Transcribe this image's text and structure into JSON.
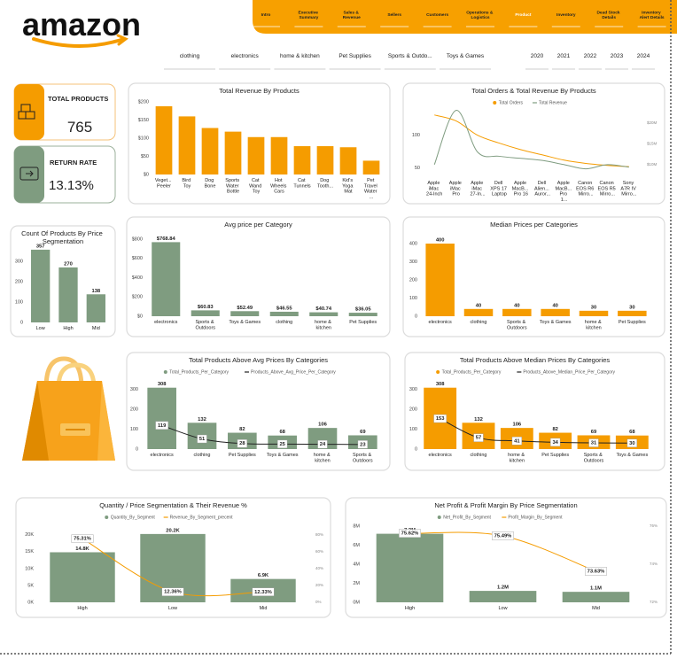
{
  "header": {
    "logo": "amazon",
    "nav": [
      "Intro",
      "Executive Summary",
      "Sales & Revenue",
      "Sellers",
      "Customers",
      "Operations & Logistics",
      "Product",
      "Inventory",
      "Dead Stock Details",
      "Inventory Alert Details"
    ],
    "active": 6
  },
  "slicers": {
    "categories": [
      "clothing",
      "electronics",
      "home & kitchen",
      "Pet Supplies",
      "Sports & Outdo...",
      "Toys & Games"
    ],
    "years": [
      "2020",
      "2021",
      "2022",
      "2023",
      "2024"
    ]
  },
  "kpis": [
    {
      "label": "TOTAL PRODUCTS",
      "value": "765"
    },
    {
      "label": "RETURN RATE",
      "value": "13.13%"
    }
  ],
  "chart_data": [
    {
      "type": "bar",
      "title": "Total Revenue By Products",
      "categories": [
        "Veget... Peeler",
        "Bird Toy",
        "Dog Bone",
        "Sports Water Bottle",
        "Cat Wand Toy",
        "Hot Wheels Cars",
        "Cat Tunnels",
        "Dog Tooth...",
        "Kid's Yoga Mat",
        "Pet Travel Water ..."
      ],
      "values": [
        188,
        160,
        128,
        118,
        103,
        103,
        78,
        78,
        75,
        38
      ],
      "color": "#f59c00",
      "ylim": [
        0,
        200
      ],
      "yticks": [
        {
          "value": 0,
          "label": "$0"
        },
        {
          "value": 50,
          "label": "$50"
        },
        {
          "value": 100,
          "label": "$100"
        },
        {
          "value": 150,
          "label": "$150"
        },
        {
          "value": 200,
          "label": "$200"
        }
      ]
    },
    {
      "type": "line",
      "title": "Total Orders & Total Revenue By Products",
      "categories": [
        "Apple iMac 24-Inch",
        "Apple iMac Pro",
        "Apple iMac 27-In...",
        "Dell XPS 17 Laptop",
        "Apple MacB... Pro 16",
        "Dell Alien... Auror...",
        "Apple MacB... Pro 1...",
        "Canon EOS R6 Mirro...",
        "Canon EOS R5 Mirro...",
        "Sony A7R IV Mirro..."
      ],
      "series": [
        {
          "name": "Total Orders",
          "color": "#f59c00",
          "values": [
            131,
            122,
            100,
            88,
            78,
            70,
            62,
            57,
            54,
            52
          ]
        },
        {
          "name": "Total Revenue",
          "color": "#7f9c80",
          "axis": "y2",
          "values": [
            10000000,
            23000000,
            13000000,
            12000000,
            11500000,
            11000000,
            10000000,
            9000000,
            10000000,
            9400000
          ]
        }
      ],
      "ylim": [
        36,
        147
      ],
      "yticks": [
        50,
        100
      ],
      "y2lim": [
        7000000,
        24400000
      ],
      "y2ticks": [
        {
          "value": 10000000,
          "label": "$10M"
        },
        {
          "value": 15000000,
          "label": "$15M"
        },
        {
          "value": 20000000,
          "label": "$20M"
        }
      ],
      "legend": "top"
    },
    {
      "type": "bar",
      "title": "Count Of Products By Price Segmentation",
      "categories": [
        "Low",
        "High",
        "Mid"
      ],
      "values": [
        357,
        270,
        138
      ],
      "color": "#7f9c80",
      "ylim": [
        0,
        400
      ],
      "yticks": [
        0,
        100,
        200,
        300
      ],
      "data_labels": true
    },
    {
      "type": "bar",
      "title": "Avg price per Category",
      "categories": [
        "electronics",
        "Sports & Outdoors",
        "Toys & Games",
        "clothing",
        "home & kitchen",
        "Pet Supplies"
      ],
      "values": [
        768.84,
        60.83,
        52.49,
        46.55,
        40.74,
        36.05
      ],
      "value_labels": [
        "$768.84",
        "$60.83",
        "$52.49",
        "$46.55",
        "$40.74",
        "$36.05"
      ],
      "color": "#7f9c80",
      "ylim": [
        0,
        800
      ],
      "yticks": [
        {
          "value": 0,
          "label": "$0"
        },
        {
          "value": 200,
          "label": "$200"
        },
        {
          "value": 400,
          "label": "$400"
        },
        {
          "value": 600,
          "label": "$600"
        },
        {
          "value": 800,
          "label": "$800"
        }
      ],
      "data_labels": true
    },
    {
      "type": "bar",
      "title": "Median Prices per Categories",
      "categories": [
        "electronics",
        "clothing",
        "Sports & Outdoors",
        "Toys & Games",
        "home & kitchen",
        "Pet Supplies"
      ],
      "values": [
        400,
        40,
        40,
        40,
        30,
        30
      ],
      "color": "#f59c00",
      "ylim": [
        0,
        400
      ],
      "yticks": [
        0,
        100,
        200,
        300,
        400
      ],
      "data_labels": true
    },
    {
      "type": "combo",
      "title": "Total Products Above Avg Prices By Categories",
      "categories": [
        "electronics",
        "clothing",
        "Pet Supplies",
        "Toys & Games",
        "home & kitchen",
        "Sports & Outdoors"
      ],
      "series": [
        {
          "name": "Total_Products_Per_Category",
          "type": "bar",
          "color": "#7f9c80",
          "values": [
            308,
            132,
            82,
            68,
            106,
            69
          ]
        },
        {
          "name": "Products_Above_Avg_Price_Per_Category",
          "type": "line",
          "color": "#222222",
          "values": [
            119,
            51,
            28,
            25,
            24,
            23
          ]
        }
      ],
      "ylim": [
        0,
        320
      ],
      "yticks": [
        0,
        100,
        200,
        300
      ],
      "data_labels": true,
      "legend": "top"
    },
    {
      "type": "combo",
      "title": "Total Products Above Median Prices By Categories",
      "categories": [
        "electronics",
        "clothing",
        "home & kitchen",
        "Pet Supplies",
        "Sports & Outdoors",
        "Toys & Games"
      ],
      "series": [
        {
          "name": "Total_Products_Per_Category",
          "type": "bar",
          "color": "#f59c00",
          "values": [
            308,
            132,
            106,
            82,
            69,
            68
          ]
        },
        {
          "name": "Products_Above_Median_Price_Per_Category",
          "type": "line",
          "color": "#222222",
          "values": [
            153,
            57,
            41,
            34,
            31,
            30
          ]
        }
      ],
      "ylim": [
        0,
        320
      ],
      "yticks": [
        0,
        100,
        200,
        300
      ],
      "data_labels": true,
      "legend": "top"
    },
    {
      "type": "combo",
      "title": "Quantity / Price Segmentation & Their Revenue %",
      "categories": [
        "High",
        "Low",
        "Mid"
      ],
      "series": [
        {
          "name": "Quantity_By_Segment",
          "type": "bar",
          "color": "#7f9c80",
          "values": [
            14800,
            20200,
            6900
          ],
          "value_labels": [
            "14.8K",
            "20.2K",
            "6.9K"
          ]
        },
        {
          "name": "Revenue_By_Segment_precent",
          "type": "line",
          "color": "#f59c00",
          "axis": "y2",
          "values": [
            75.31,
            12.36,
            12.33
          ],
          "value_labels": [
            "75.31%",
            "12.36%",
            "12.33%"
          ]
        }
      ],
      "ylim": [
        0,
        22000
      ],
      "yticks": [
        {
          "value": 0,
          "label": "0K"
        },
        {
          "value": 5000,
          "label": "5K"
        },
        {
          "value": 10000,
          "label": "10K"
        },
        {
          "value": 15000,
          "label": "15K"
        },
        {
          "value": 20000,
          "label": "20K"
        }
      ],
      "y2lim": [
        0,
        88
      ],
      "y2ticks": [
        {
          "value": 0,
          "label": "0%"
        },
        {
          "value": 20,
          "label": "20%"
        },
        {
          "value": 40,
          "label": "40%"
        },
        {
          "value": 60,
          "label": "60%"
        },
        {
          "value": 80,
          "label": "80%"
        }
      ],
      "legend": "top"
    },
    {
      "type": "combo",
      "title": "Net Profit & Profit Margin By Price Segmentation",
      "categories": [
        "High",
        "Low",
        "Mid"
      ],
      "series": [
        {
          "name": "Net_Profit_By_Segment",
          "type": "bar",
          "color": "#7f9c80",
          "values": [
            7200000,
            1200000,
            1100000
          ],
          "value_labels": [
            "7.2M",
            "1.2M",
            "1.1M"
          ]
        },
        {
          "name": "Profit_Margin_By_Segment",
          "type": "line",
          "color": "#f59c00",
          "axis": "y2",
          "values": [
            75.62,
            75.49,
            73.63
          ],
          "value_labels": [
            "75.62%",
            "75.49%",
            "73.63%"
          ]
        }
      ],
      "ylim": [
        0,
        8000000
      ],
      "yticks": [
        {
          "value": 0,
          "label": "0M"
        },
        {
          "value": 2000000,
          "label": "2M"
        },
        {
          "value": 4000000,
          "label": "4M"
        },
        {
          "value": 6000000,
          "label": "6M"
        },
        {
          "value": 8000000,
          "label": "8M"
        }
      ],
      "y2lim": [
        72,
        76
      ],
      "y2ticks": [
        {
          "value": 72,
          "label": "72%"
        },
        {
          "value": 74,
          "label": "74%"
        },
        {
          "value": 76,
          "label": "76%"
        }
      ],
      "legend": "top"
    }
  ]
}
